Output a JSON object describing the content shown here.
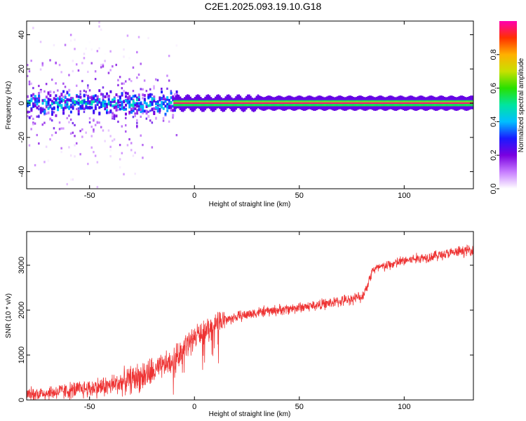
{
  "title": "C2E1.2025.093.19.10.G18",
  "chart_data": [
    {
      "type": "heatmap",
      "xlabel": "Height of straight line (km)",
      "ylabel": "Frequency (Hz)",
      "xlim": [
        -80,
        133
      ],
      "ylim": [
        -50,
        48
      ],
      "xticks": [
        -50,
        0,
        50,
        100
      ],
      "yticks": [
        -40,
        -20,
        0,
        20,
        40
      ],
      "colorbar": {
        "label": "Normalized spectral amplitude",
        "range": [
          0,
          1
        ],
        "ticks": [
          0.0,
          0.2,
          0.4,
          0.6,
          0.8
        ],
        "colors": [
          "#ffffff",
          "#c77dff",
          "#7a00e0",
          "#1a1aff",
          "#00bfff",
          "#00e5a0",
          "#29e000",
          "#c8e000",
          "#ffb000",
          "#ff3000",
          "#ff00b0"
        ]
      },
      "signal": {
        "center_frequency_hz": 0,
        "strong_above_height_km": -10,
        "scatter_below_height_km": -10
      }
    },
    {
      "type": "line",
      "xlabel": "Height of straight line (km)",
      "ylabel": "SNR (10 * v/v)",
      "xlim": [
        -80,
        133
      ],
      "ylim": [
        0,
        3750
      ],
      "xticks": [
        -50,
        0,
        50,
        100
      ],
      "yticks": [
        0,
        1000,
        2000,
        3000
      ],
      "color": "#ee3333",
      "trend": {
        "x": [
          -80,
          -60,
          -40,
          -20,
          -10,
          0,
          10,
          20,
          30,
          40,
          50,
          60,
          70,
          80,
          82,
          85,
          100,
          120,
          133
        ],
        "y": [
          120,
          200,
          320,
          600,
          900,
          1400,
          1700,
          1850,
          1950,
          2000,
          2060,
          2120,
          2200,
          2300,
          2500,
          2900,
          3100,
          3250,
          3350
        ]
      }
    }
  ]
}
